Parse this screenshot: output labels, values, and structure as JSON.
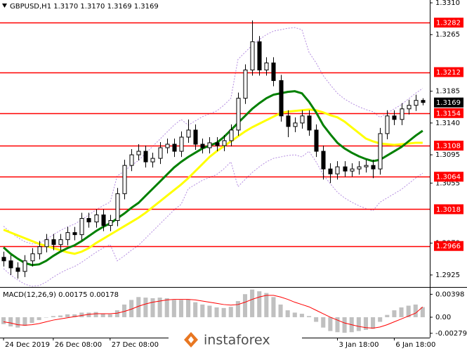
{
  "chart_data": [
    {
      "type": "candlestick",
      "title": "GBPUSD,H1  1.3170 1.3170 1.3169 1.3169",
      "xlim": [
        -0.5,
        60
      ],
      "xticks": [
        {
          "value": 0,
          "label": "24 Dec 2019"
        },
        {
          "value": 7,
          "label": "26 Dec 08:00"
        },
        {
          "value": 15,
          "label": "27 Dec 08:00"
        },
        {
          "value": 47,
          "label": "3 Jan 18:00"
        },
        {
          "value": 55,
          "label": "6 Jan 18:00"
        }
      ],
      "ylim": [
        1.2908,
        1.3314
      ],
      "yticks": [
        {
          "value": 1.331,
          "label": "1.3310"
        },
        1.3265,
        1.3185,
        {
          "value": 1.314,
          "label": "1.3140"
        },
        1.3095,
        1.3055,
        {
          "value": 1.297,
          "label": "1.2970"
        },
        1.2925
      ],
      "up_color": "#ffffff",
      "down_color": "#000000",
      "outline_color": "#000000",
      "open": [
        1.295,
        1.2945,
        1.2935,
        1.293,
        1.2945,
        1.2955,
        1.2965,
        1.2975,
        1.2968,
        1.2975,
        1.2985,
        1.2982,
        1.3005,
        1.3,
        1.301,
        1.2995,
        1.3002,
        1.304,
        1.308,
        1.3095,
        1.31,
        1.3085,
        1.309,
        1.3105,
        1.311,
        1.31,
        1.312,
        1.313,
        1.311,
        1.3105,
        1.3112,
        1.3108,
        1.3115,
        1.313,
        1.3175,
        1.3215,
        1.3255,
        1.3215,
        1.3225,
        1.32,
        1.315,
        1.3135,
        1.314,
        1.315,
        1.313,
        1.31,
        1.3075,
        1.3068,
        1.3078,
        1.3072,
        1.3075,
        1.3078,
        1.308,
        1.3075,
        1.3125,
        1.315,
        1.3145,
        1.316,
        1.3165,
        1.3172
      ],
      "high": [
        1.2958,
        1.2953,
        1.2943,
        1.2953,
        1.2963,
        1.2973,
        1.2983,
        1.2983,
        1.2983,
        1.2993,
        1.2993,
        1.3013,
        1.3013,
        1.3018,
        1.3018,
        1.301,
        1.3048,
        1.3088,
        1.3103,
        1.311,
        1.3108,
        1.3098,
        1.3113,
        1.3118,
        1.3118,
        1.3128,
        1.3145,
        1.3138,
        1.3118,
        1.312,
        1.312,
        1.3123,
        1.3138,
        1.3183,
        1.3223,
        1.3285,
        1.3263,
        1.3233,
        1.3233,
        1.3208,
        1.3158,
        1.3148,
        1.3158,
        1.3158,
        1.3138,
        1.3108,
        1.3083,
        1.3086,
        1.3086,
        1.3083,
        1.3086,
        1.3088,
        1.3088,
        1.3133,
        1.3158,
        1.3158,
        1.3168,
        1.3173,
        1.318,
        1.3175
      ],
      "low": [
        1.2937,
        1.2925,
        1.292,
        1.2922,
        1.2937,
        1.2947,
        1.2957,
        1.296,
        1.296,
        1.2967,
        1.2974,
        1.2974,
        1.2992,
        1.2992,
        1.2987,
        1.2987,
        1.2994,
        1.3032,
        1.3072,
        1.3087,
        1.3077,
        1.3077,
        1.3082,
        1.3097,
        1.3092,
        1.3092,
        1.3112,
        1.3102,
        1.3097,
        1.3097,
        1.31,
        1.31,
        1.3107,
        1.3122,
        1.3167,
        1.3207,
        1.3207,
        1.3207,
        1.3192,
        1.3142,
        1.312,
        1.3127,
        1.3132,
        1.3122,
        1.3092,
        1.306,
        1.3055,
        1.306,
        1.3064,
        1.3064,
        1.3067,
        1.307,
        1.3062,
        1.3067,
        1.3117,
        1.3137,
        1.3137,
        1.3152,
        1.3157,
        1.3165
      ],
      "close": [
        1.2945,
        1.2935,
        1.293,
        1.2945,
        1.2955,
        1.2965,
        1.2975,
        1.2968,
        1.2975,
        1.2985,
        1.2982,
        1.3005,
        1.3,
        1.301,
        1.2995,
        1.3002,
        1.304,
        1.308,
        1.3095,
        1.31,
        1.3085,
        1.309,
        1.3105,
        1.311,
        1.31,
        1.312,
        1.313,
        1.311,
        1.3105,
        1.3112,
        1.3108,
        1.3115,
        1.313,
        1.3175,
        1.3215,
        1.3255,
        1.3215,
        1.3225,
        1.32,
        1.315,
        1.3135,
        1.314,
        1.315,
        1.313,
        1.31,
        1.3075,
        1.3068,
        1.3078,
        1.3072,
        1.3075,
        1.3078,
        1.308,
        1.3075,
        1.3125,
        1.315,
        1.3145,
        1.316,
        1.3165,
        1.3172,
        1.3169
      ],
      "ma_fast": {
        "color": "#008000",
        "values": [
          1.2964,
          1.2955,
          1.2948,
          1.2942,
          1.2939,
          1.294,
          1.2945,
          1.2952,
          1.2958,
          1.2963,
          1.2967,
          1.2973,
          1.298,
          1.2987,
          1.2993,
          1.2998,
          1.3005,
          1.3012,
          1.302,
          1.3027,
          1.3037,
          1.3047,
          1.3057,
          1.3067,
          1.3077,
          1.3085,
          1.3092,
          1.3098,
          1.3104,
          1.3108,
          1.3112,
          1.312,
          1.313,
          1.314,
          1.315,
          1.316,
          1.3168,
          1.3175,
          1.318,
          1.3182,
          1.3184,
          1.3185,
          1.3182,
          1.317,
          1.3155,
          1.3137,
          1.3124,
          1.3112,
          1.3104,
          1.3098,
          1.3093,
          1.3089,
          1.3086,
          1.3088,
          1.3094,
          1.31,
          1.3106,
          1.3114,
          1.3122,
          1.3129
        ]
      },
      "ma_slow": {
        "color": "#ffff00",
        "values": [
          1.2989,
          1.2985,
          1.2981,
          1.2977,
          1.2973,
          1.2969,
          1.2966,
          1.2963,
          1.296,
          1.2957,
          1.2955,
          1.2958,
          1.2963,
          1.297,
          1.2976,
          1.2982,
          1.2988,
          1.2994,
          1.3,
          1.3006,
          1.3013,
          1.3021,
          1.3029,
          1.3037,
          1.3045,
          1.3053,
          1.3062,
          1.3072,
          1.3082,
          1.3092,
          1.31,
          1.3107,
          1.3114,
          1.3121,
          1.3128,
          1.3134,
          1.3139,
          1.3144,
          1.3149,
          1.3154,
          1.3156,
          1.3157,
          1.3158,
          1.3159,
          1.3158,
          1.3155,
          1.3151,
          1.3148,
          1.3142,
          1.3134,
          1.3126,
          1.3118,
          1.3114,
          1.3111,
          1.311,
          1.3109,
          1.311,
          1.3111,
          1.3112,
          1.3112
        ]
      },
      "bands": {
        "color": "#b48ce0",
        "upper": [
          1.2994,
          1.2985,
          1.2978,
          1.2972,
          1.2969,
          1.297,
          1.2975,
          1.2982,
          1.2988,
          1.2993,
          1.2997,
          1.3003,
          1.301,
          1.3017,
          1.3023,
          1.3028,
          1.3065,
          1.3072,
          1.308,
          1.3087,
          1.3097,
          1.3107,
          1.3117,
          1.3127,
          1.3137,
          1.3145,
          1.3137,
          1.3143,
          1.3149,
          1.3153,
          1.3157,
          1.3165,
          1.3175,
          1.323,
          1.324,
          1.325,
          1.3258,
          1.3265,
          1.327,
          1.3272,
          1.3274,
          1.3275,
          1.3272,
          1.324,
          1.3225,
          1.3207,
          1.3194,
          1.3182,
          1.3174,
          1.3168,
          1.3163,
          1.3159,
          1.3156,
          1.3148,
          1.3154,
          1.316,
          1.3166,
          1.3174,
          1.3182,
          1.3189
        ],
        "lower": [
          1.2934,
          1.2925,
          1.2918,
          1.2912,
          1.2909,
          1.291,
          1.2915,
          1.2922,
          1.2928,
          1.2933,
          1.2937,
          1.2943,
          1.295,
          1.2957,
          1.2963,
          1.2968,
          1.2945,
          1.2952,
          1.296,
          1.2967,
          1.2977,
          1.2987,
          1.2997,
          1.3007,
          1.3017,
          1.3025,
          1.3047,
          1.3053,
          1.3059,
          1.3063,
          1.3067,
          1.3075,
          1.3085,
          1.305,
          1.306,
          1.307,
          1.3078,
          1.3085,
          1.309,
          1.3092,
          1.3094,
          1.3095,
          1.3092,
          1.31,
          1.3085,
          1.3067,
          1.3054,
          1.3042,
          1.3034,
          1.3028,
          1.3023,
          1.3019,
          1.3016,
          1.3028,
          1.3034,
          1.304,
          1.3046,
          1.3054,
          1.3062,
          1.3069
        ]
      },
      "levels": {
        "color": "#ff0000",
        "values": [
          1.3282,
          1.3212,
          1.3154,
          1.3108,
          1.3064,
          1.3018,
          1.2966
        ]
      },
      "last_price": 1.3169,
      "watermark": "instaforex"
    },
    {
      "type": "macd",
      "title": "MACD(12,26,9) 0.00175 0.00178",
      "xlim": [
        -0.5,
        60
      ],
      "ylim": [
        -0.0033,
        0.005
      ],
      "yticks": [
        0.00398,
        {
          "value": 0,
          "label": "0.00"
        },
        -0.00279
      ],
      "histogram": {
        "color": "#c0c0c0",
        "values": [
          -0.0012,
          -0.0016,
          -0.0018,
          -0.0015,
          -0.001,
          -0.0005,
          0.0,
          0.0002,
          0.0003,
          0.0005,
          0.0005,
          0.0008,
          0.0008,
          0.0009,
          0.0006,
          0.0005,
          0.0012,
          0.0022,
          0.003,
          0.0035,
          0.0034,
          0.0033,
          0.0034,
          0.0033,
          0.003,
          0.003,
          0.0031,
          0.0026,
          0.0022,
          0.002,
          0.0017,
          0.0016,
          0.0018,
          0.0028,
          0.004,
          0.0048,
          0.0045,
          0.0042,
          0.0035,
          0.0022,
          0.0012,
          0.0008,
          0.0006,
          0.0002,
          -0.0008,
          -0.0018,
          -0.0024,
          -0.0026,
          -0.0027,
          -0.0026,
          -0.0024,
          -0.0022,
          -0.002,
          -0.0008,
          0.0004,
          0.0012,
          0.0017,
          0.002,
          0.0022,
          0.00175
        ]
      },
      "signal": {
        "color": "#ff0000",
        "values": [
          -0.0008,
          -0.001,
          -0.0013,
          -0.0014,
          -0.0013,
          -0.0011,
          -0.0008,
          -0.0005,
          -0.0003,
          -0.0001,
          0.0001,
          0.0003,
          0.0005,
          0.0006,
          0.0006,
          0.0006,
          0.0007,
          0.001,
          0.0014,
          0.0019,
          0.0023,
          0.0026,
          0.0028,
          0.003,
          0.0031,
          0.0031,
          0.0031,
          0.003,
          0.0028,
          0.0026,
          0.0024,
          0.0022,
          0.0021,
          0.0022,
          0.0026,
          0.0031,
          0.0035,
          0.0038,
          0.0038,
          0.0035,
          0.0031,
          0.0026,
          0.0022,
          0.0018,
          0.0012,
          0.0006,
          0.0,
          -0.0005,
          -0.001,
          -0.0013,
          -0.0016,
          -0.0018,
          -0.0019,
          -0.0017,
          -0.0013,
          -0.0008,
          -0.0003,
          0.0002,
          0.0007,
          0.00178
        ]
      }
    }
  ]
}
